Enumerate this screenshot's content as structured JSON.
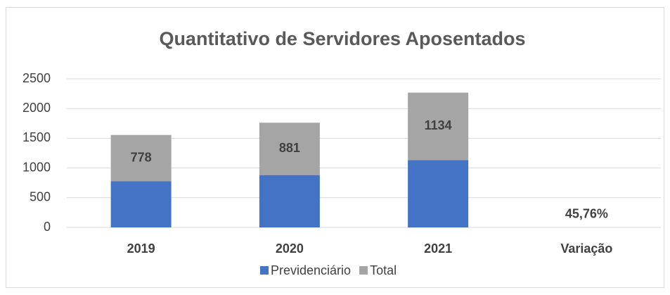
{
  "chart_data": {
    "type": "stacked_bar",
    "title": "Quantitativo de Servidores Aposentados",
    "categories": [
      "2019",
      "2020",
      "2021",
      "Variação"
    ],
    "series": [
      {
        "name": "Previdenciário",
        "color": "#4472c4",
        "values": [
          778,
          881,
          1134,
          null
        ]
      },
      {
        "name": "Total",
        "color": "#a5a5a5",
        "values": [
          778,
          881,
          1134,
          0.4576
        ],
        "value_labels": [
          "778",
          "881",
          "1134",
          "45,76%"
        ]
      }
    ],
    "ylim": [
      0,
      2500
    ],
    "yticks": [
      0,
      500,
      1000,
      1500,
      2000,
      2500
    ],
    "grid": true,
    "legend": "bottom"
  }
}
